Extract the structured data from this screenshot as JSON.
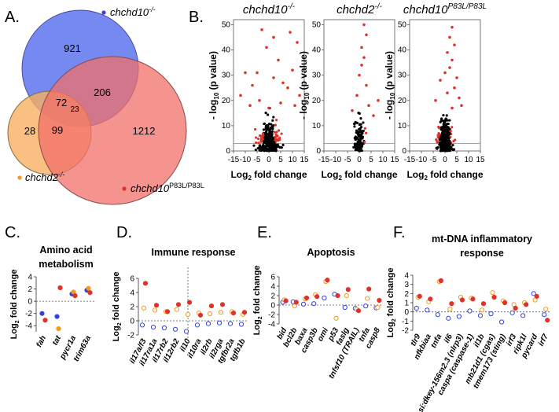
{
  "panel_letters": {
    "A": "A.",
    "B": "B.",
    "C": "C.",
    "D": "D.",
    "E": "E.",
    "F": "F."
  },
  "colors": {
    "chchd10": "#3440e0",
    "chchd2": "#f39a1e",
    "p83l": "#e0322a",
    "venn_blue": "#5d74ee",
    "venn_orange": "#f7b062",
    "venn_red": "#f2706a",
    "ns": "#000000"
  },
  "venn": {
    "legend_chchd10": "chchd10",
    "legend_chchd10_sup": "-/-",
    "legend_chchd2": "chchd2",
    "legend_chchd2_sup": "-/-",
    "legend_p83l": "chchd10",
    "legend_p83l_sup": "P83L/P83L",
    "counts": {
      "only10": "921",
      "only2": "28",
      "onlyP83L": "1212",
      "c10_2": "72",
      "c10_P83L": "206",
      "c2_P83L": "99",
      "all3": "23"
    }
  },
  "chart_data": [
    {
      "type": "scatter",
      "panel": "B",
      "title": "chchd10",
      "title_sup": "-/-",
      "xlabel": "Log2 fold change",
      "ylabel": "- log10 (p value)",
      "xlim": [
        -15,
        15
      ],
      "ylim": [
        0,
        52
      ],
      "xticks": [
        -15,
        -10,
        -5,
        0,
        5,
        10,
        15
      ],
      "yticks": [
        0,
        10,
        20,
        30,
        40,
        50
      ],
      "threshold": 3,
      "spread": 8,
      "seed": 11,
      "n": 300,
      "highlights": [
        [
          -3,
          48
        ],
        [
          9,
          47
        ],
        [
          2,
          45
        ],
        [
          12,
          43
        ],
        [
          -1,
          41
        ],
        [
          4,
          36
        ],
        [
          -10,
          31
        ],
        [
          10,
          32
        ],
        [
          -5,
          31
        ],
        [
          2,
          29
        ],
        [
          6,
          27
        ],
        [
          -7,
          26
        ],
        [
          8,
          25
        ],
        [
          -12,
          22
        ],
        [
          13,
          22
        ],
        [
          -4,
          20
        ],
        [
          5,
          19
        ],
        [
          -8,
          18
        ],
        [
          11,
          18
        ],
        [
          0,
          17
        ]
      ]
    },
    {
      "type": "scatter",
      "panel": "B",
      "title": "chchd2",
      "title_sup": "-/-",
      "xlabel": "Log2 fold change",
      "ylabel": "- log10 (p value)",
      "xlim": [
        -15,
        15
      ],
      "ylim": [
        0,
        52
      ],
      "xticks": [
        -15,
        -10,
        -5,
        0,
        5,
        10,
        15
      ],
      "yticks": [
        0,
        10,
        20,
        30,
        40,
        50
      ],
      "threshold": 3,
      "spread": 4,
      "seed": 23,
      "n": 130,
      "highlights": [
        [
          2,
          50
        ],
        [
          3,
          46
        ],
        [
          1,
          41
        ],
        [
          2,
          37
        ],
        [
          1,
          34
        ],
        [
          0,
          30
        ],
        [
          3,
          26
        ],
        [
          -1,
          22
        ],
        [
          8,
          20
        ],
        [
          4,
          18
        ],
        [
          -3,
          16
        ],
        [
          6,
          14
        ]
      ]
    },
    {
      "type": "scatter",
      "panel": "B",
      "title": "chchd10",
      "title_sup": "P83L/P83L",
      "xlabel": "Log2 fold change",
      "ylabel": "- log10 (p value)",
      "xlim": [
        -15,
        15
      ],
      "ylim": [
        0,
        52
      ],
      "xticks": [
        -15,
        -10,
        -5,
        0,
        5,
        10,
        15
      ],
      "yticks": [
        0,
        10,
        20,
        30,
        40,
        50
      ],
      "threshold": 3,
      "spread": 5,
      "seed": 37,
      "n": 360,
      "highlights": [
        [
          3,
          49
        ],
        [
          2,
          45
        ],
        [
          4,
          42
        ],
        [
          1,
          39
        ],
        [
          3,
          36
        ],
        [
          2,
          33
        ],
        [
          0,
          31
        ],
        [
          5,
          29
        ],
        [
          -2,
          28
        ],
        [
          4,
          25
        ],
        [
          1,
          23
        ],
        [
          6,
          21
        ],
        [
          -4,
          20
        ],
        [
          7,
          18
        ],
        [
          3,
          17
        ]
      ]
    },
    {
      "type": "scatter",
      "panel": "C",
      "title": "Amino acid metabolism",
      "ylabel": "Log2 fold change",
      "ylim": [
        -5,
        4
      ],
      "yticks": [
        -4,
        -2,
        0,
        2,
        4
      ],
      "categories": [
        "fah",
        "tat",
        "pycr1a",
        "trim63a"
      ],
      "series": [
        {
          "key": "chchd10",
          "values": [
            -2,
            -2.5,
            1.2,
            1.8
          ]
        },
        {
          "key": "chchd2",
          "values": [
            null,
            -4.5,
            1.5,
            2.1
          ]
        },
        {
          "key": "p83l",
          "values": [
            -3.1,
            2.2,
            0.9,
            1.4
          ]
        }
      ]
    },
    {
      "type": "scatter",
      "panel": "D",
      "title": "Immune response",
      "ylabel": "Log2 fold change",
      "ylim": [
        -2,
        6
      ],
      "yticks": [
        -2,
        0,
        2,
        4,
        6
      ],
      "categories": [
        "il17a/f3",
        "il17ra1a",
        "il17rb2",
        "il12rb2",
        "il10",
        "il10ra",
        "il2rb",
        "il2rga",
        "tgfbr2a",
        "tgfb1b"
      ],
      "series": [
        {
          "key": "chchd10",
          "values": [
            -0.6,
            -0.9,
            -1.0,
            -1.2,
            -1.5,
            -0.6,
            -0.4,
            -0.3,
            -0.4,
            -0.5
          ]
        },
        {
          "key": "chchd2",
          "values": [
            1.8,
            1.5,
            1.3,
            1.6,
            0.9,
            1.1,
            1.0,
            1.2,
            1.3,
            0.9
          ]
        },
        {
          "key": "p83l",
          "values": [
            5.3,
            2.2,
            1.3,
            2.3,
            2.6,
            0.8,
            2.1,
            2.3,
            1.1,
            1.2
          ]
        }
      ]
    },
    {
      "type": "scatter",
      "panel": "E",
      "title": "Apoptosis",
      "ylabel": "Log2 fold change",
      "ylim": [
        -4,
        6
      ],
      "yticks": [
        -4,
        -2,
        0,
        2,
        4,
        6
      ],
      "categories": [
        "bid",
        "bcl2b",
        "baxa",
        "casp3b",
        "omi",
        "p53",
        "faslg",
        "tnfsf10 (TRAIL)",
        "tnfa",
        "casp8"
      ],
      "series": [
        {
          "key": "chchd10",
          "values": [
            0.6,
            0.7,
            0.2,
            0.3,
            1.5,
            2.3,
            -0.5,
            -0.7,
            -0.2,
            -0.6
          ]
        },
        {
          "key": "chchd2",
          "values": [
            1.1,
            -0.2,
            1.3,
            2.2,
            5.0,
            -2.8,
            2.0,
            -0.9,
            1.4,
            -0.5
          ]
        },
        {
          "key": "p83l",
          "values": [
            0.9,
            0.6,
            1.5,
            1.8,
            5.3,
            2.0,
            3.3,
            -1.2,
            3.4,
            1.0
          ]
        }
      ]
    },
    {
      "type": "scatter",
      "panel": "F",
      "title": "mt-DNA inflammatory response",
      "ylabel": "Log2 fold change",
      "ylim": [
        -2,
        4
      ],
      "yticks": [
        -2,
        -1,
        0,
        1,
        2,
        3,
        4
      ],
      "categories": [
        "tlr9",
        "nfkbiaa",
        "tnfa",
        "il6",
        "si:dkey-156m2.3 (nlrp3)",
        "caspa (caspase-1)",
        "il1b",
        "mb21d1 (cgas)",
        "tmem173 (sting)",
        "irf3",
        "ripk1l",
        "pycard",
        "irf7"
      ],
      "series": [
        {
          "key": "chchd10",
          "values": [
            0.4,
            0.2,
            -0.3,
            -0.7,
            -0.5,
            0.1,
            -0.4,
            -0.2,
            -1.1,
            -0.1,
            -0.4,
            2.0,
            -0.3
          ]
        },
        {
          "key": "chchd2",
          "values": [
            1.6,
            1.1,
            3.3,
            0.3,
            1.6,
            1.5,
            0.2,
            2.1,
            1.2,
            0.8,
            1.0,
            1.3,
            0.3
          ]
        },
        {
          "key": "p83l",
          "values": [
            1.7,
            1.4,
            3.4,
            0.9,
            1.3,
            1.4,
            0.9,
            1.6,
            1.0,
            0.4,
            0.8,
            1.7,
            -0.9
          ]
        }
      ]
    }
  ]
}
